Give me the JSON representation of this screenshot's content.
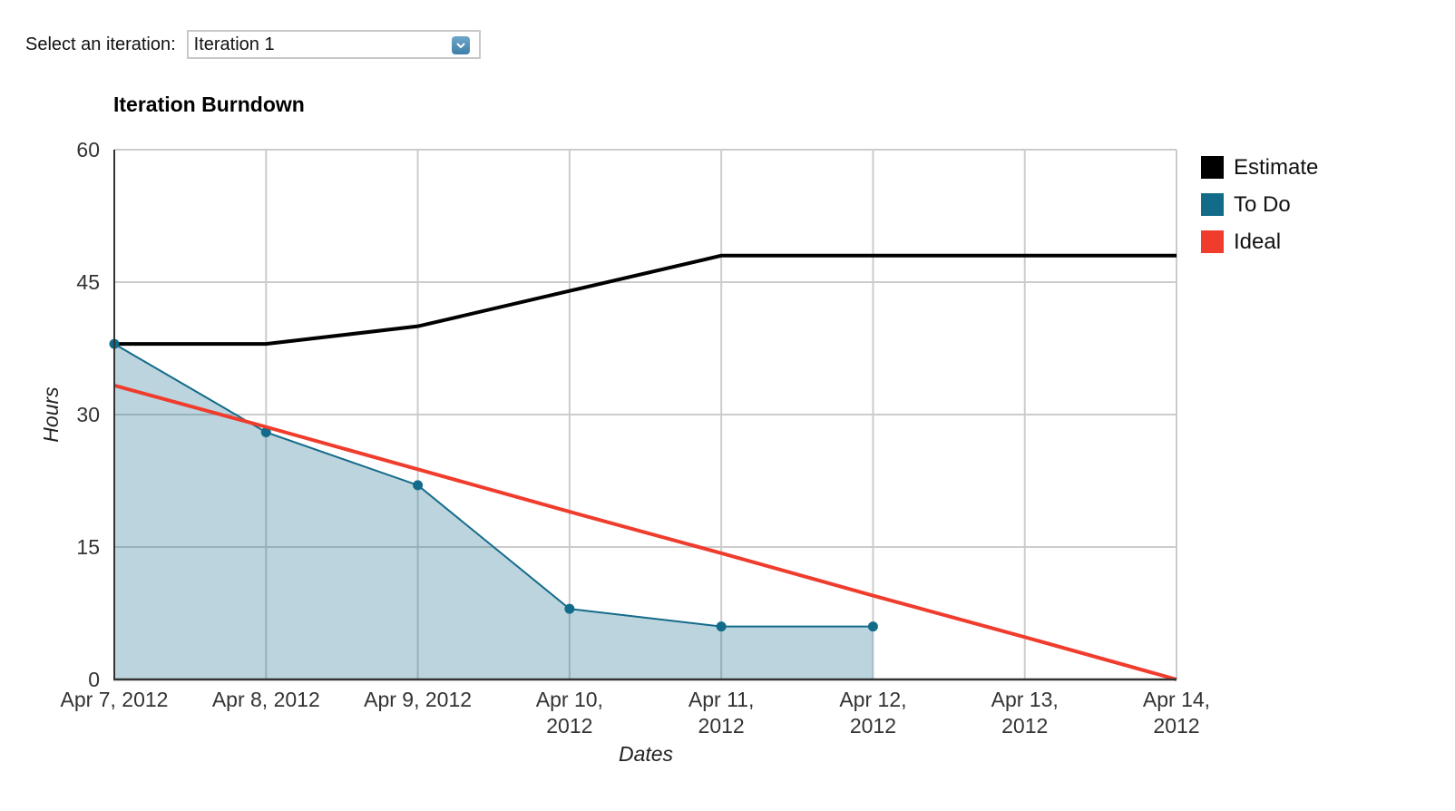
{
  "selector": {
    "label": "Select an iteration:",
    "value": "Iteration 1",
    "icon": "chevron-down-icon"
  },
  "chart_data": {
    "type": "line",
    "title": "Iteration Burndown",
    "xlabel": "Dates",
    "ylabel": "Hours",
    "ylim": [
      0,
      60
    ],
    "yticks": [
      "0",
      "15",
      "30",
      "45",
      "60"
    ],
    "grid": true,
    "legend_position": "right",
    "categories": [
      "Apr 7, 2012",
      "Apr 8, 2012",
      "Apr 9, 2012",
      "Apr 10, 2012",
      "Apr 11, 2012",
      "Apr 12, 2012",
      "Apr 13, 2012",
      "Apr 14, 2012"
    ],
    "series": [
      {
        "name": "Estimate",
        "color": "#000000",
        "values": [
          38,
          38,
          40,
          44,
          48,
          48,
          48,
          48
        ]
      },
      {
        "name": "To Do",
        "color": "#136b8a",
        "type": "area",
        "values": [
          38,
          28,
          22,
          8,
          6,
          6,
          null,
          null
        ]
      },
      {
        "name": "Ideal",
        "color": "#f03c2d",
        "values": [
          33.3,
          28.6,
          23.8,
          19.0,
          14.3,
          9.5,
          4.8,
          0
        ]
      }
    ]
  },
  "legend": [
    {
      "label": "Estimate",
      "color": "#000000"
    },
    {
      "label": "To Do",
      "color": "#136b8a"
    },
    {
      "label": "Ideal",
      "color": "#f03c2d"
    }
  ]
}
